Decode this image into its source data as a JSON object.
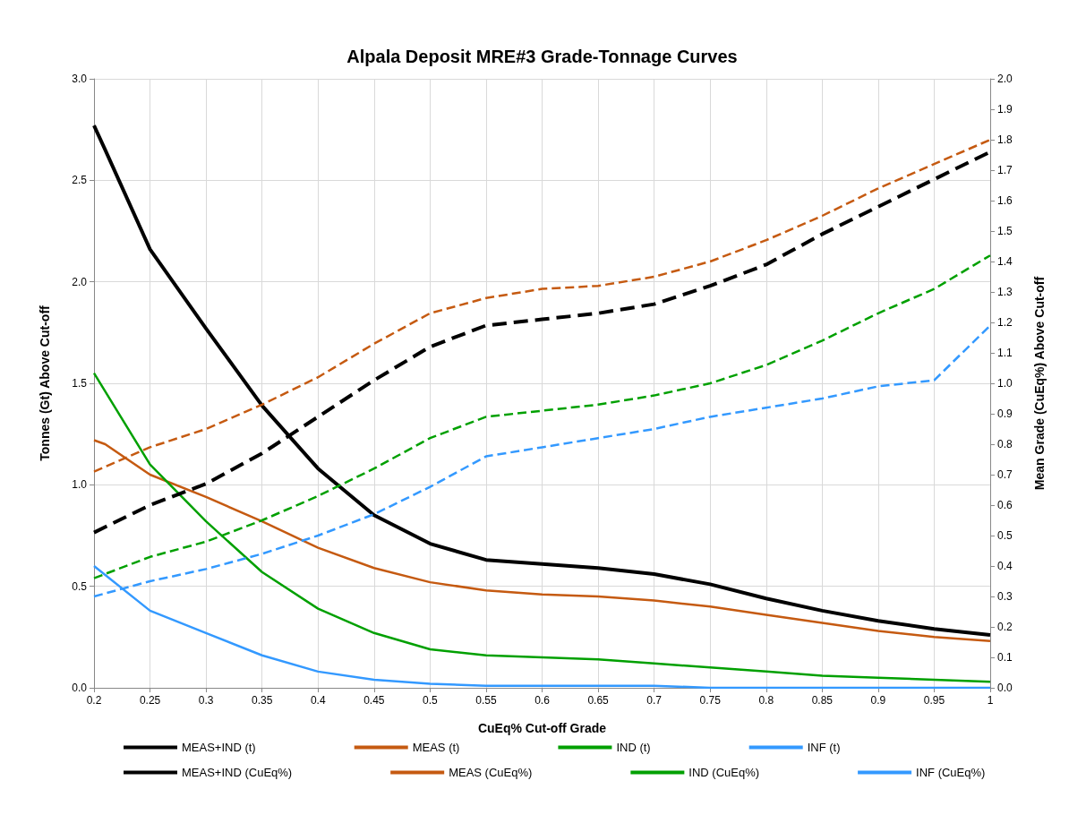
{
  "chart_data": {
    "type": "line",
    "title": "Alpala Deposit MRE#3 Grade-Tonnage Curves",
    "xlabel": "CuEq% Cut-off Grade",
    "ylabel": "Tonnes (Gt) Above Cut-off",
    "y2label": "Mean Grade (CuEq%) Above Cut-off",
    "x": [
      0.2,
      0.25,
      0.3,
      0.35,
      0.4,
      0.45,
      0.5,
      0.55,
      0.6,
      0.65,
      0.7,
      0.75,
      0.8,
      0.85,
      0.9,
      0.95,
      1
    ],
    "series": [
      {
        "name": "MEAS+IND (t)",
        "color": "#000000",
        "line_style": "solid",
        "x": [
          0.2,
          0.21,
          0.25,
          0.3,
          0.35,
          0.4,
          0.45,
          0.5,
          0.55,
          0.6,
          0.65,
          0.7,
          0.75,
          0.8,
          0.85,
          0.9,
          0.95,
          1
        ],
        "values": [
          2.77,
          2.65,
          2.16,
          1.77,
          1.39,
          1.08,
          0.85,
          0.71,
          0.63,
          0.61,
          0.59,
          0.56,
          0.51,
          0.44,
          0.38,
          0.33,
          0.29,
          0.26
        ]
      },
      {
        "name": "MEAS (t)",
        "color": "#c55a11",
        "line_style": "solid",
        "x": [
          0.2,
          0.21,
          0.25,
          0.3,
          0.35,
          0.4,
          0.45,
          0.5,
          0.55,
          0.6,
          0.65,
          0.7,
          0.75,
          0.8,
          0.85,
          0.9,
          0.95,
          1
        ],
        "values": [
          1.22,
          1.2,
          1.05,
          0.94,
          0.82,
          0.69,
          0.59,
          0.52,
          0.48,
          0.46,
          0.45,
          0.43,
          0.4,
          0.36,
          0.32,
          0.28,
          0.25,
          0.23
        ]
      },
      {
        "name": "IND (t)",
        "color": "#00a000",
        "line_style": "solid",
        "values": [
          1.55,
          1.1,
          0.82,
          0.57,
          0.39,
          0.27,
          0.19,
          0.16,
          0.15,
          0.14,
          0.12,
          0.1,
          0.08,
          0.06,
          0.05,
          0.04,
          0.03
        ]
      },
      {
        "name": "INF (t)",
        "color": "#3399ff",
        "line_style": "solid",
        "values": [
          0.6,
          0.38,
          0.27,
          0.16,
          0.08,
          0.04,
          0.02,
          0.01,
          0.01,
          0.01,
          0.01,
          0,
          0,
          0,
          0,
          0,
          0
        ]
      },
      {
        "name": "MEAS+IND (CuEq%)",
        "color": "#000000",
        "line_style": "dashed",
        "axis": "y2",
        "values": [
          0.51,
          0.6,
          0.67,
          0.77,
          0.89,
          1.01,
          1.12,
          1.19,
          1.21,
          1.23,
          1.26,
          1.32,
          1.39,
          1.49,
          1.58,
          1.67,
          1.76
        ]
      },
      {
        "name": "MEAS (CuEq%)",
        "color": "#c55a11",
        "line_style": "dashed",
        "axis": "y2",
        "values": [
          0.71,
          0.79,
          0.85,
          0.93,
          1.02,
          1.13,
          1.23,
          1.28,
          1.31,
          1.32,
          1.35,
          1.4,
          1.47,
          1.55,
          1.64,
          1.72,
          1.8
        ]
      },
      {
        "name": "IND (CuEq%)",
        "color": "#00a000",
        "line_style": "dashed",
        "axis": "y2",
        "values": [
          0.36,
          0.43,
          0.48,
          0.55,
          0.63,
          0.72,
          0.82,
          0.89,
          0.91,
          0.93,
          0.96,
          1.0,
          1.06,
          1.14,
          1.23,
          1.31,
          1.42
        ]
      },
      {
        "name": "INF (CuEq%)",
        "color": "#3399ff",
        "line_style": "dashed",
        "axis": "y2",
        "values": [
          0.3,
          0.35,
          0.39,
          0.44,
          0.5,
          0.57,
          0.66,
          0.76,
          0.79,
          0.82,
          0.85,
          0.89,
          0.92,
          0.95,
          0.99,
          1.01,
          1.19
        ]
      }
    ],
    "xlim": [
      0.2,
      1
    ],
    "xticks": [
      0.2,
      0.25,
      0.3,
      0.35,
      0.4,
      0.45,
      0.5,
      0.55,
      0.6,
      0.65,
      0.7,
      0.75,
      0.8,
      0.85,
      0.9,
      0.95,
      1
    ],
    "ylim": [
      0,
      3
    ],
    "yticks": [
      {
        "value": 0,
        "label": "0.0"
      },
      {
        "value": 0.5,
        "label": "0.5"
      },
      {
        "value": 1,
        "label": "1.0"
      },
      {
        "value": 1.5,
        "label": "1.5"
      },
      {
        "value": 2,
        "label": "2.0"
      },
      {
        "value": 2.5,
        "label": "2.5"
      },
      {
        "value": 3,
        "label": "3.0"
      }
    ],
    "y2lim": [
      0,
      2
    ],
    "y2ticks": [
      {
        "value": 0,
        "label": "0.0"
      },
      {
        "value": 0.1,
        "label": "0.1"
      },
      {
        "value": 0.2,
        "label": "0.2"
      },
      {
        "value": 0.3,
        "label": "0.3"
      },
      {
        "value": 0.4,
        "label": "0.4"
      },
      {
        "value": 0.5,
        "label": "0.5"
      },
      {
        "value": 0.6,
        "label": "0.6"
      },
      {
        "value": 0.7,
        "label": "0.7"
      },
      {
        "value": 0.8,
        "label": "0.8"
      },
      {
        "value": 0.9,
        "label": "0.9"
      },
      {
        "value": 1,
        "label": "1.0"
      },
      {
        "value": 1.1,
        "label": "1.1"
      },
      {
        "value": 1.2,
        "label": "1.2"
      },
      {
        "value": 1.3,
        "label": "1.3"
      },
      {
        "value": 1.4,
        "label": "1.4"
      },
      {
        "value": 1.5,
        "label": "1.5"
      },
      {
        "value": 1.6,
        "label": "1.6"
      },
      {
        "value": 1.7,
        "label": "1.7"
      },
      {
        "value": 1.8,
        "label": "1.8"
      },
      {
        "value": 1.9,
        "label": "1.9"
      },
      {
        "value": 2,
        "label": "2.0"
      }
    ],
    "grid": true,
    "legend": "bottom",
    "marker": "none"
  }
}
